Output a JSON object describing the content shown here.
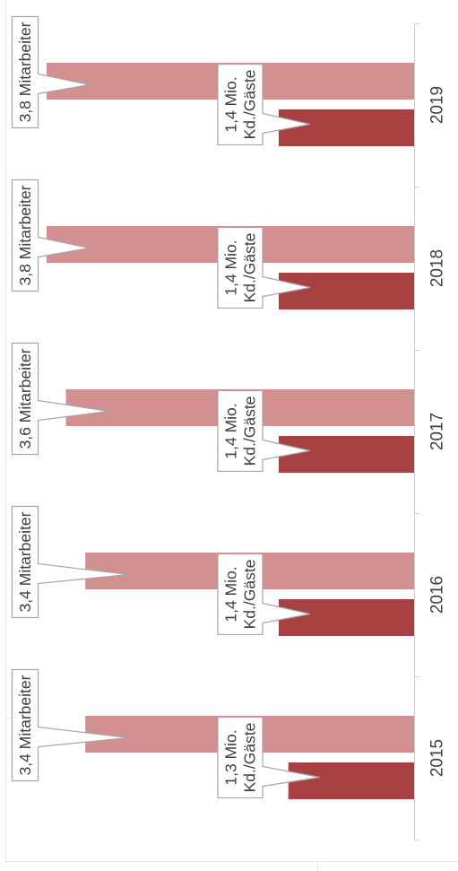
{
  "chart_data": {
    "type": "bar",
    "orientation": "rotated-90",
    "categories": [
      "2015",
      "2016",
      "2017",
      "2018",
      "2019"
    ],
    "series": [
      {
        "color": "#d29090",
        "values": [
          3.4,
          3.4,
          3.6,
          3.8,
          3.8
        ],
        "labels": [
          [
            "3,4 Mitarbeiter"
          ],
          [
            "3,4 Mitarbeiter"
          ],
          [
            "3,6 Mitarbeiter"
          ],
          [
            "3,8 Mitarbeiter"
          ],
          [
            "3,8 Mitarbeiter"
          ]
        ]
      },
      {
        "color": "#a84242",
        "values": [
          1.3,
          1.4,
          1.4,
          1.4,
          1.4
        ],
        "labels": [
          [
            "1,3 Mio.",
            "Kd./Gäste"
          ],
          [
            "1,4 Mio.",
            "Kd./Gäste"
          ],
          [
            "1,4 Mio.",
            "Kd./Gäste"
          ],
          [
            "1,4 Mio.",
            "Kd./Gäste"
          ],
          [
            "1,4 Mio.",
            "Kd./Gäste"
          ]
        ]
      }
    ],
    "grid": false,
    "legend": "none"
  }
}
